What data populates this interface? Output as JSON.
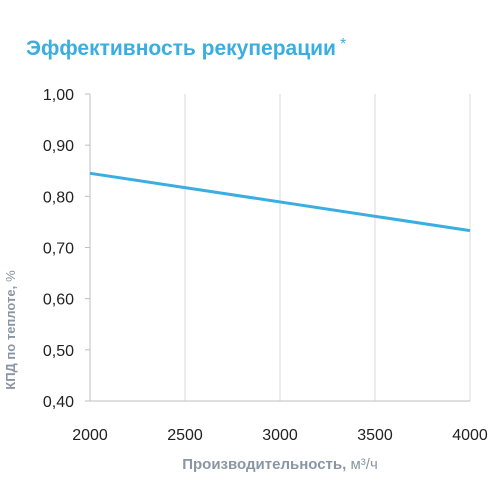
{
  "chart_data": {
    "type": "line",
    "title": "Эффективность рекуперации",
    "title_marker": "*",
    "xlabel": "Производительность,",
    "xlabel_unit": "м³/ч",
    "ylabel": "КПД по теплоте,",
    "ylabel_unit": "%",
    "xlim": [
      2000,
      4000
    ],
    "ylim": [
      0.4,
      1.0
    ],
    "x_ticks": [
      "2000",
      "2500",
      "3000",
      "3500",
      "4000"
    ],
    "y_ticks": [
      "0,40",
      "0,50",
      "0,60",
      "0,70",
      "0,80",
      "0,90",
      "1,00"
    ],
    "grid": "vertical",
    "colors": {
      "line": "#3aaee0",
      "title": "#3aaee0",
      "grid": "#d9d9d9",
      "axis_label": "#8a96a3"
    },
    "series": [
      {
        "x": [
          2000,
          4000
        ],
        "y": [
          0.845,
          0.733
        ]
      }
    ]
  }
}
